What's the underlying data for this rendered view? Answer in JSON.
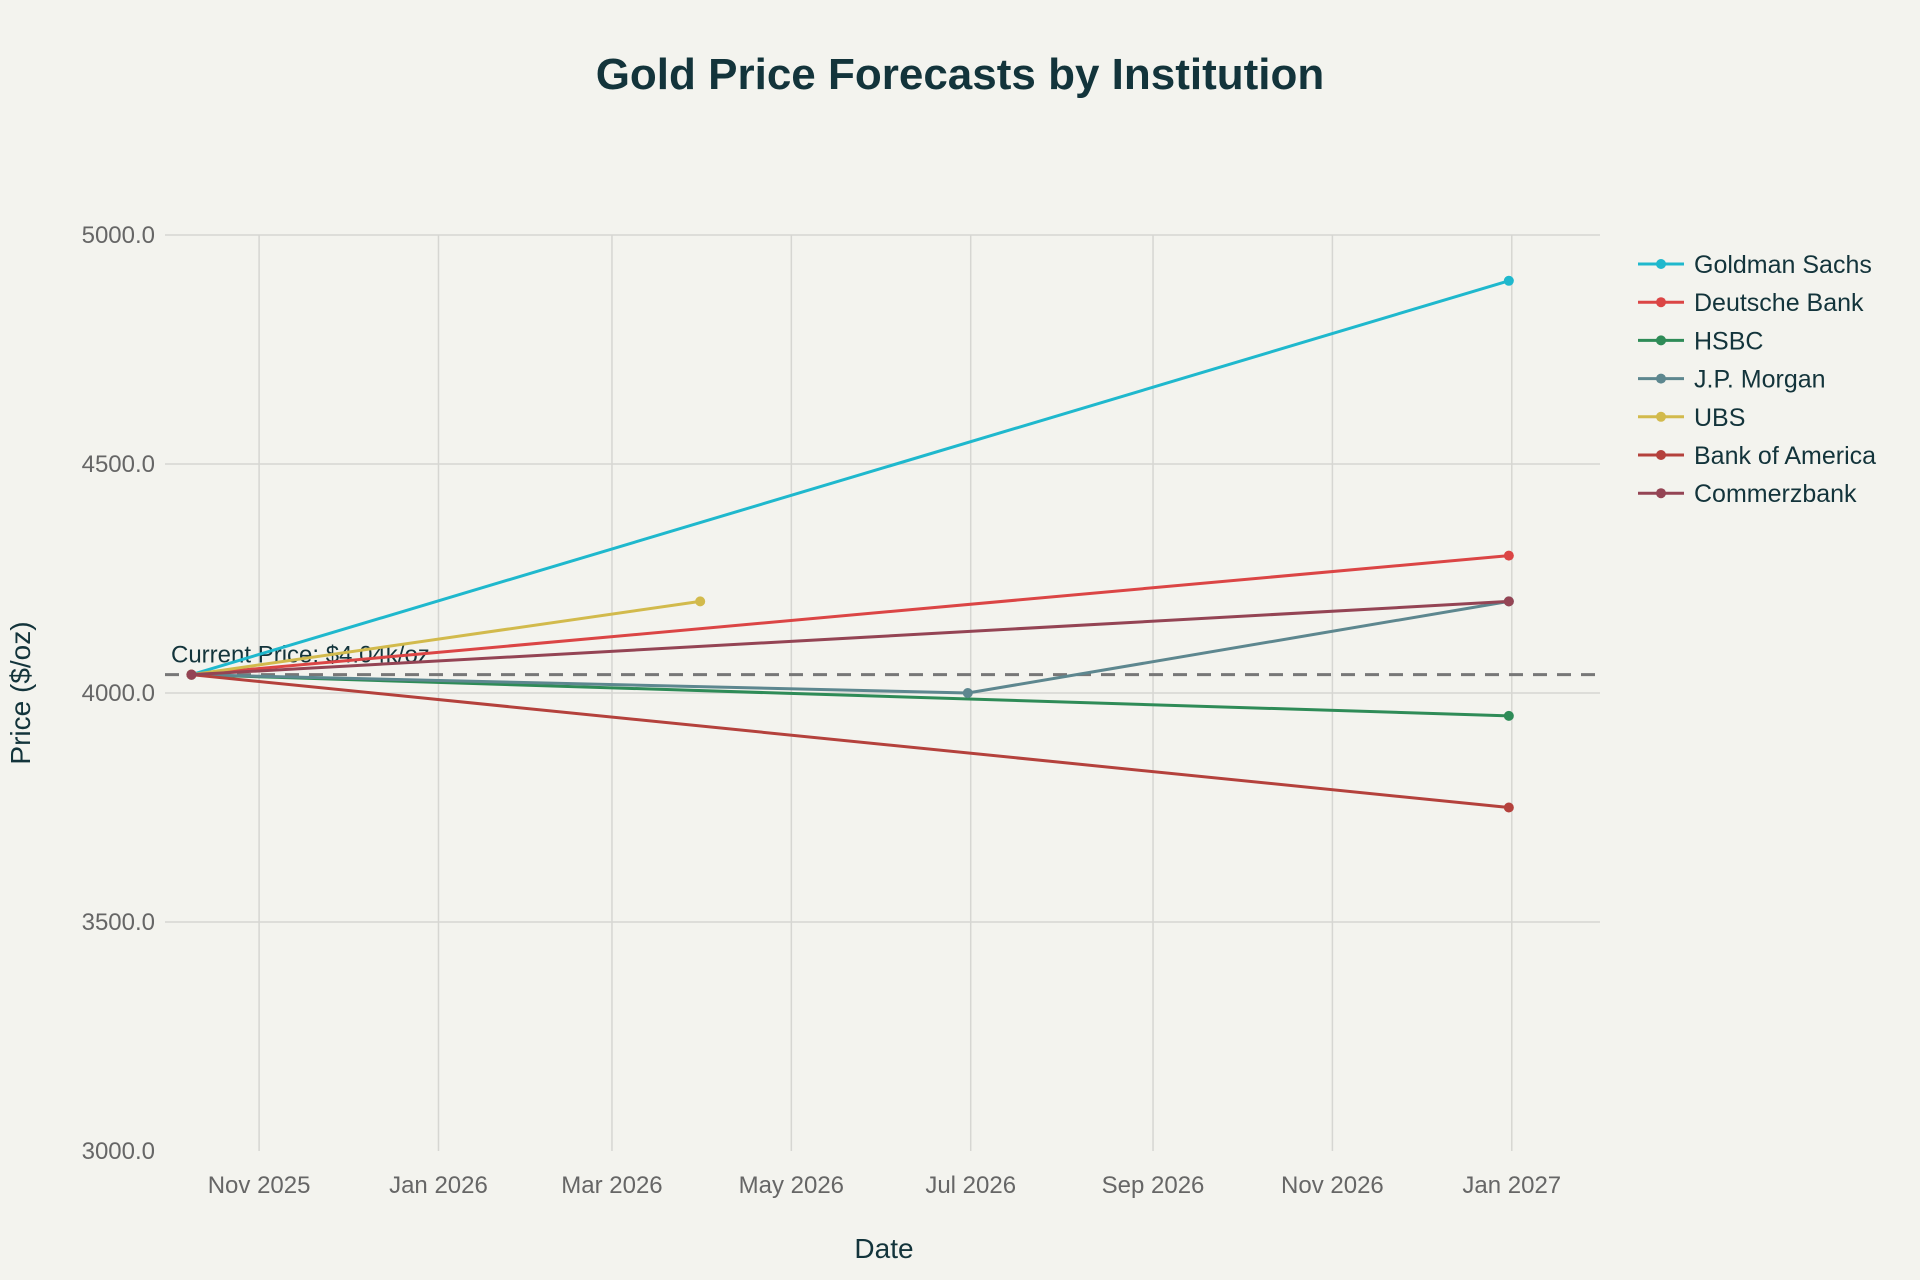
{
  "chart_data": {
    "type": "line",
    "title": "Gold Price Forecasts by Institution",
    "xlabel": "Date",
    "ylabel": "Price ($/oz)",
    "xlim": [
      "2025-09-30",
      "2027-01-31"
    ],
    "ylim": [
      3000,
      5000
    ],
    "grid": true,
    "legend_position": "right",
    "x_ticks": [
      {
        "date": "2025-11-01",
        "label": "Nov 2025"
      },
      {
        "date": "2026-01-01",
        "label": "Jan 2026"
      },
      {
        "date": "2026-03-01",
        "label": "Mar 2026"
      },
      {
        "date": "2026-05-01",
        "label": "May 2026"
      },
      {
        "date": "2026-07-01",
        "label": "Jul 2026"
      },
      {
        "date": "2026-09-01",
        "label": "Sep 2026"
      },
      {
        "date": "2026-11-01",
        "label": "Nov 2026"
      },
      {
        "date": "2027-01-01",
        "label": "Jan 2027"
      }
    ],
    "y_ticks": [
      {
        "value": 3000,
        "label": "3000.0"
      },
      {
        "value": 3500,
        "label": "3500.0"
      },
      {
        "value": 4000,
        "label": "4000.0"
      },
      {
        "value": 4500,
        "label": "4500.0"
      },
      {
        "value": 5000,
        "label": "5000.0"
      }
    ],
    "reference_line": {
      "value": 4040,
      "label": "Current Price: $4.04k/oz",
      "color": "#777777",
      "style": "dashed"
    },
    "series": [
      {
        "name": "Goldman Sachs",
        "color": "#1fb8cd",
        "points": [
          [
            "2025-10-09",
            4040
          ],
          [
            "2026-12-31",
            4900
          ]
        ]
      },
      {
        "name": "Deutsche Bank",
        "color": "#db4545",
        "points": [
          [
            "2025-10-09",
            4040
          ],
          [
            "2026-12-31",
            4300
          ]
        ]
      },
      {
        "name": "HSBC",
        "color": "#2e8b57",
        "points": [
          [
            "2025-10-09",
            4040
          ],
          [
            "2026-12-31",
            3950
          ]
        ]
      },
      {
        "name": "J.P. Morgan",
        "color": "#5d878f",
        "points": [
          [
            "2025-10-09",
            4040
          ],
          [
            "2026-06-30",
            4000
          ],
          [
            "2026-12-31",
            4200
          ]
        ]
      },
      {
        "name": "UBS",
        "color": "#d2ba4c",
        "points": [
          [
            "2025-10-09",
            4040
          ],
          [
            "2026-03-31",
            4200
          ]
        ]
      },
      {
        "name": "Bank of America",
        "color": "#b4413c",
        "points": [
          [
            "2025-10-09",
            4040
          ],
          [
            "2026-12-31",
            3750
          ]
        ]
      },
      {
        "name": "Commerzbank",
        "color": "#944454",
        "points": [
          [
            "2025-10-09",
            4040
          ],
          [
            "2026-12-31",
            4200
          ]
        ]
      }
    ]
  }
}
